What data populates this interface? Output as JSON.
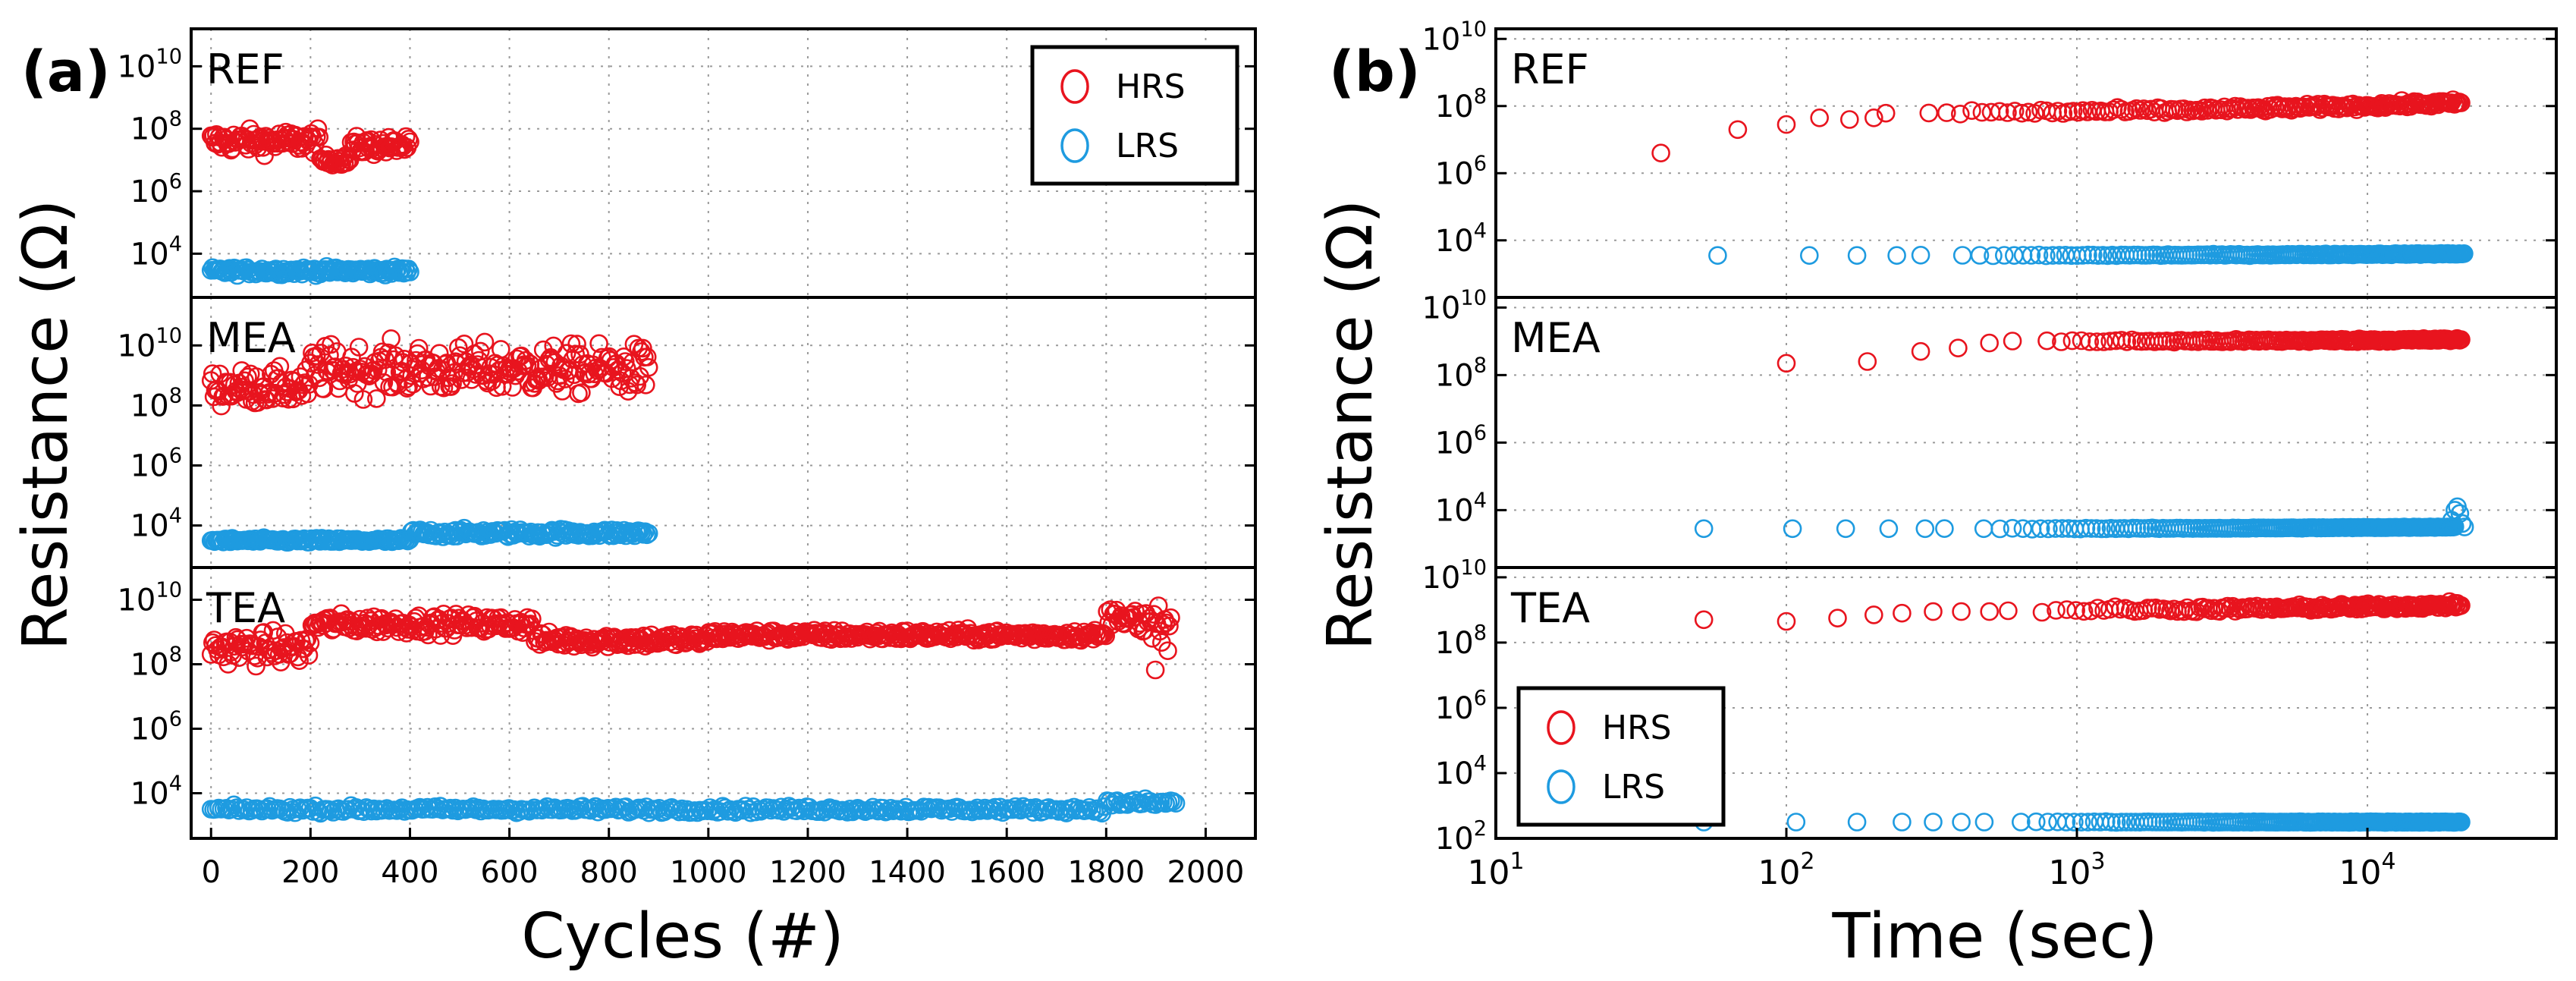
{
  "colors": {
    "hrs": "#e8141e",
    "lrs": "#1e9be0",
    "axis": "#000000",
    "grid": "#9a9a9a"
  },
  "chart_data": [
    {
      "panel": "(a)",
      "type": "scatter",
      "x_scale": "linear",
      "y_scale": "log",
      "xlabel": "Cycles (#)",
      "ylabel": "Resistance (Ω)",
      "xlim": [
        -40,
        2100
      ],
      "x_ticks": [
        0,
        200,
        400,
        600,
        800,
        1000,
        1200,
        1400,
        1600,
        1800,
        2000
      ],
      "x_tick_labels": [
        "0",
        "200",
        "400",
        "600",
        "800",
        "1000",
        "1200",
        "1400",
        "1600",
        "1800",
        "2000"
      ],
      "legend": {
        "position": "top-right",
        "in_subplot": "REF",
        "entries": [
          "HRS",
          "LRS"
        ]
      },
      "subplots": [
        {
          "label": "REF",
          "ylim_exp": [
            2.6,
            11.2
          ],
          "y_ticks_exp": [
            4,
            6,
            8,
            10
          ],
          "y_tick_labels": [
            "10^4",
            "10^6",
            "10^8",
            "10^10"
          ],
          "series": [
            {
              "name": "HRS",
              "x_range": [
                0,
                400
              ],
              "samples": 150,
              "segments": [
                {
                  "from": 0,
                  "to": 220,
                  "log_center": 7.6,
                  "log_spread": 0.55
                },
                {
                  "from": 220,
                  "to": 280,
                  "log_center": 7.0,
                  "log_spread": 0.25
                },
                {
                  "from": 280,
                  "to": 400,
                  "log_center": 7.45,
                  "log_spread": 0.45
                }
              ]
            },
            {
              "name": "LRS",
              "x_range": [
                0,
                400
              ],
              "samples": 130,
              "segments": [
                {
                  "from": 0,
                  "to": 400,
                  "log_center": 3.45,
                  "log_spread": 0.18
                }
              ]
            }
          ]
        },
        {
          "label": "MEA",
          "ylim_exp": [
            2.6,
            11.6
          ],
          "y_ticks_exp": [
            4,
            6,
            8,
            10
          ],
          "y_tick_labels": [
            "10^4",
            "10^6",
            "10^8",
            "10^10"
          ],
          "series": [
            {
              "name": "HRS",
              "x_range": [
                0,
                880
              ],
              "samples": 300,
              "segments": [
                {
                  "from": 0,
                  "to": 200,
                  "log_center": 8.6,
                  "log_spread": 0.9
                },
                {
                  "from": 200,
                  "to": 880,
                  "log_center": 9.2,
                  "log_spread": 1.25
                }
              ]
            },
            {
              "name": "LRS",
              "x_range": [
                0,
                880
              ],
              "samples": 250,
              "segments": [
                {
                  "from": 0,
                  "to": 400,
                  "log_center": 3.5,
                  "log_spread": 0.12
                },
                {
                  "from": 400,
                  "to": 880,
                  "log_center": 3.75,
                  "log_spread": 0.2
                }
              ]
            }
          ]
        },
        {
          "label": "TEA",
          "ylim_exp": [
            2.6,
            11.0
          ],
          "y_ticks_exp": [
            4,
            6,
            8,
            10
          ],
          "y_tick_labels": [
            "10^4",
            "10^6",
            "10^8",
            "10^10"
          ],
          "series": [
            {
              "name": "HRS",
              "x_range": [
                0,
                1930
              ],
              "samples": 620,
              "segments": [
                {
                  "from": 0,
                  "to": 200,
                  "log_center": 8.5,
                  "log_spread": 0.75
                },
                {
                  "from": 200,
                  "to": 650,
                  "log_center": 9.25,
                  "log_spread": 0.45
                },
                {
                  "from": 650,
                  "to": 1000,
                  "log_center": 8.75,
                  "log_spread": 0.35
                },
                {
                  "from": 1000,
                  "to": 1800,
                  "log_center": 8.9,
                  "log_spread": 0.25
                },
                {
                  "from": 1800,
                  "to": 1860,
                  "log_center": 9.5,
                  "log_spread": 0.4
                },
                {
                  "from": 1860,
                  "to": 1930,
                  "log_center": 9.0,
                  "log_spread": 1.4
                }
              ]
            },
            {
              "name": "LRS",
              "x_range": [
                0,
                1940
              ],
              "samples": 380,
              "segments": [
                {
                  "from": 0,
                  "to": 1800,
                  "log_center": 3.5,
                  "log_spread": 0.15
                },
                {
                  "from": 1800,
                  "to": 1940,
                  "log_center": 3.7,
                  "log_spread": 0.2
                }
              ]
            }
          ]
        }
      ]
    },
    {
      "panel": "(b)",
      "type": "scatter",
      "x_scale": "log",
      "y_scale": "log",
      "xlabel": "Time (sec)",
      "ylabel": "Resistance (Ω)",
      "xlim_exp": [
        1,
        4.65
      ],
      "x_ticks_exp": [
        1,
        2,
        3,
        4
      ],
      "x_tick_labels": [
        "10^1",
        "10^2",
        "10^3",
        "10^4"
      ],
      "legend": {
        "position": "bottom-left",
        "in_subplot": "TEA",
        "entries": [
          "HRS",
          "LRS"
        ]
      },
      "subplots": [
        {
          "label": "REF",
          "ylim_exp": [
            2.3,
            10.3
          ],
          "y_ticks_exp": [
            4,
            6,
            8,
            10
          ],
          "y_tick_labels": [
            "10^4",
            "10^6",
            "10^8",
            "10^10"
          ],
          "series": [
            {
              "name": "HRS",
              "anchor_points": [
                [
                  37,
                  6.6
                ],
                [
                  68,
                  7.3
                ],
                [
                  100,
                  7.45
                ],
                [
                  130,
                  7.65
                ],
                [
                  165,
                  7.6
                ],
                [
                  200,
                  7.65
                ]
              ],
              "trend": {
                "from_sec": 220,
                "to_sec": 21000,
                "log_start": 7.8,
                "log_end": 8.1,
                "samples": 180,
                "spread": 0.15
              }
            },
            {
              "name": "LRS",
              "anchor_points": [
                [
                  58,
                  3.55
                ],
                [
                  120,
                  3.55
                ],
                [
                  175,
                  3.55
                ],
                [
                  240,
                  3.55
                ]
              ],
              "trend": {
                "from_sec": 290,
                "to_sec": 21500,
                "log_start": 3.55,
                "log_end": 3.6,
                "samples": 170,
                "spread": 0.03
              }
            }
          ]
        },
        {
          "label": "MEA",
          "ylim_exp": [
            2.3,
            10.3
          ],
          "y_ticks_exp": [
            4,
            6,
            8,
            10
          ],
          "y_tick_labels": [
            "10^4",
            "10^6",
            "10^8",
            "10^10"
          ],
          "series": [
            {
              "name": "HRS",
              "anchor_points": [
                [
                  100,
                  8.35
                ],
                [
                  190,
                  8.4
                ],
                [
                  290,
                  8.7
                ],
                [
                  390,
                  8.8
                ],
                [
                  500,
                  8.95
                ]
              ],
              "trend": {
                "from_sec": 600,
                "to_sec": 21000,
                "log_start": 9.0,
                "log_end": 9.05,
                "samples": 170,
                "spread": 0.07
              }
            },
            {
              "name": "LRS",
              "anchor_points": [
                [
                  52,
                  3.45
                ],
                [
                  105,
                  3.45
                ],
                [
                  160,
                  3.45
                ],
                [
                  225,
                  3.45
                ],
                [
                  300,
                  3.45
                ]
              ],
              "trend": {
                "from_sec": 350,
                "to_sec": 20000,
                "log_start": 3.45,
                "log_end": 3.5,
                "samples": 170,
                "spread": 0.02
              },
              "extra_points": [
                [
                  19500,
                  3.7
                ],
                [
                  20000,
                  4.0
                ],
                [
                  20400,
                  4.1
                ],
                [
                  20800,
                  3.9
                ],
                [
                  21200,
                  3.6
                ],
                [
                  21600,
                  3.5
                ]
              ]
            }
          ]
        },
        {
          "label": "TEA",
          "ylim_exp": [
            2.0,
            10.3
          ],
          "y_ticks_exp": [
            2,
            4,
            6,
            8,
            10
          ],
          "y_tick_labels": [
            "10^2",
            "10^4",
            "10^6",
            "10^8",
            "10^10"
          ],
          "series": [
            {
              "name": "HRS",
              "anchor_points": [
                [
                  52,
                  8.7
                ],
                [
                  100,
                  8.65
                ],
                [
                  150,
                  8.75
                ],
                [
                  200,
                  8.85
                ],
                [
                  250,
                  8.9
                ],
                [
                  320,
                  8.95
                ],
                [
                  400,
                  8.95
                ],
                [
                  500,
                  8.95
                ]
              ],
              "trend": {
                "from_sec": 580,
                "to_sec": 21000,
                "log_start": 9.0,
                "log_end": 9.15,
                "samples": 180,
                "spread": 0.15
              }
            },
            {
              "name": "LRS",
              "anchor_points": [
                [
                  52,
                  2.5
                ],
                [
                  108,
                  2.5
                ],
                [
                  175,
                  2.5
                ],
                [
                  250,
                  2.5
                ],
                [
                  320,
                  2.5
                ],
                [
                  400,
                  2.5
                ]
              ],
              "trend": {
                "from_sec": 480,
                "to_sec": 21000,
                "log_start": 2.5,
                "log_end": 2.5,
                "samples": 170,
                "spread": 0.02
              }
            }
          ]
        }
      ]
    }
  ]
}
